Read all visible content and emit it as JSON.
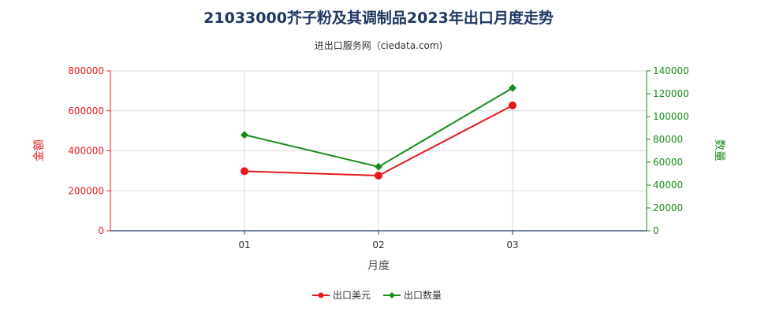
{
  "chart_data": {
    "type": "line",
    "title": "21033000芥子粉及其调制品2023年出口月度走势",
    "subtitle": "进出口服务网（ciedata.com)",
    "xlabel": "月度",
    "categories": [
      "01",
      "02",
      "03"
    ],
    "y_left": {
      "label": "金额",
      "range": [
        0,
        800000
      ],
      "ticks": [
        "0",
        "200000",
        "400000",
        "600000",
        "800000"
      ],
      "color": "#e31a1c"
    },
    "y_right": {
      "label": "数量",
      "range": [
        0,
        140000
      ],
      "ticks": [
        "0",
        "20000",
        "40000",
        "60000",
        "80000",
        "100000",
        "120000",
        "140000"
      ],
      "color": "#1a8a1a"
    },
    "series": [
      {
        "name": "出口美元",
        "axis": "left",
        "color": "#e31a1c",
        "marker": "circle",
        "values": [
          298000,
          276000,
          627000
        ]
      },
      {
        "name": "出口数量",
        "axis": "right",
        "color": "#1a8a1a",
        "marker": "diamond",
        "values": [
          84000,
          56000,
          125000
        ]
      }
    ],
    "grid": true,
    "legend": "bottom-center"
  }
}
